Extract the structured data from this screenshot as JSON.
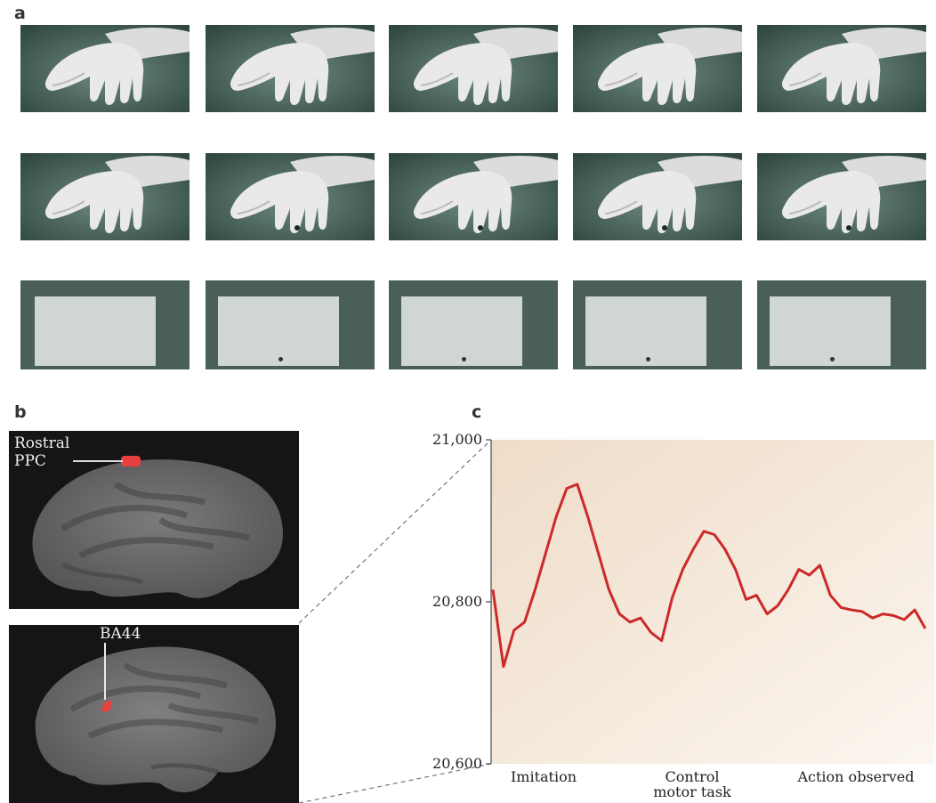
{
  "panels": {
    "a": "a",
    "b": "b",
    "c": "c"
  },
  "panel_a": {
    "rows": [
      "hand-frames-row-1",
      "hand-frames-row-2",
      "screen-frames-row"
    ],
    "frames_per_row": 5,
    "cue_dot_frames_row_2": [
      2,
      3,
      4,
      5
    ],
    "cue_dot_frames_row_3": [
      2,
      3,
      4,
      5
    ]
  },
  "panel_b": {
    "top_label_line1": "Rostral",
    "top_label_line2": "PPC",
    "bottom_label": "BA44",
    "highlight_color": "#e8403f"
  },
  "chart_data": {
    "type": "line",
    "ylim": [
      20600,
      21000
    ],
    "yticks": [
      "21,000",
      "20,800",
      "20,600"
    ],
    "ytick_values": [
      21000,
      20800,
      20600
    ],
    "x_labels": [
      {
        "line1": "Imitation",
        "line2": ""
      },
      {
        "line1": "Control",
        "line2": "motor task"
      },
      {
        "line1": "Action observed",
        "line2": ""
      }
    ],
    "line_color": "#cc2a2a",
    "background": "gradient-tan",
    "series": [
      {
        "values": [
          20815,
          20720,
          20765,
          20775,
          20815,
          20860,
          20905,
          20940,
          20945,
          20905,
          20860,
          20815,
          20785,
          20775,
          20780,
          20762,
          20752,
          20805,
          20840,
          20865,
          20887,
          20883,
          20865,
          20840,
          20803,
          20808,
          20785,
          20795,
          20815,
          20840,
          20833,
          20845,
          20808,
          20793,
          20790,
          20788,
          20780,
          20785,
          20783,
          20778,
          20790,
          20767
        ]
      }
    ]
  }
}
